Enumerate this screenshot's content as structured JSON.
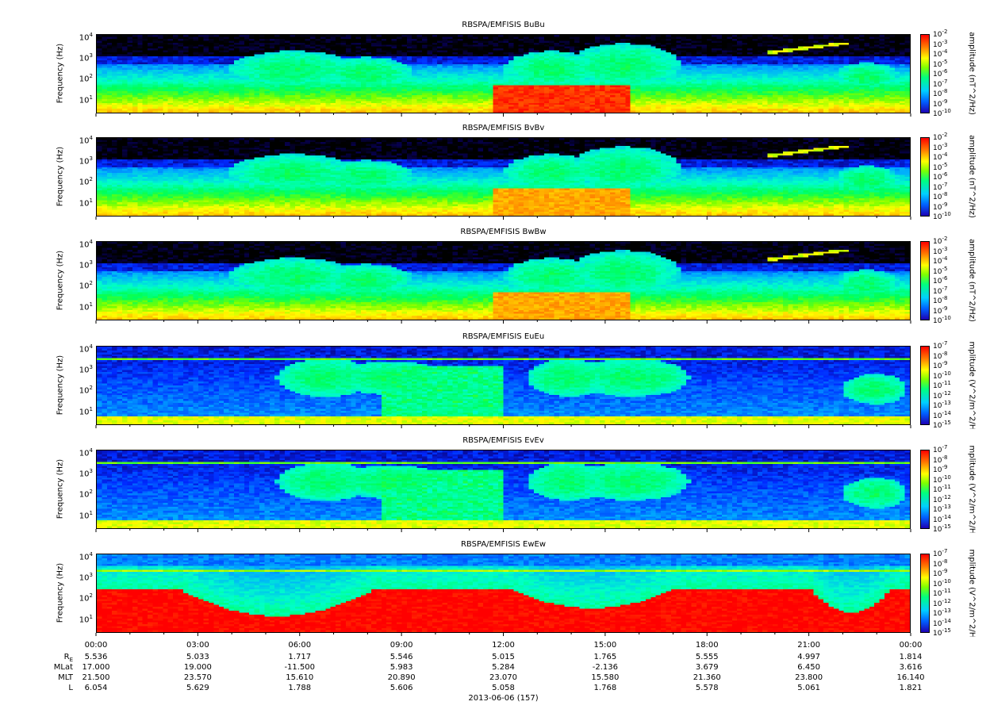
{
  "chart_data": {
    "type": "heatmap",
    "date_label": "2013-06-06 (157)",
    "x_ticks": [
      "00:00",
      "03:00",
      "06:00",
      "09:00",
      "12:00",
      "15:00",
      "18:00",
      "21:00",
      "00:00"
    ],
    "y_tick_labels": [
      "10",
      "10",
      "10",
      "10"
    ],
    "y_tick_exponents": [
      "1",
      "2",
      "3",
      "4"
    ],
    "ylabel": "Frequency (Hz)",
    "panels": [
      {
        "title": "RBSPA/EMFISIS  BuBu",
        "cblabel": "amplitude (nT^2/Hz)",
        "cbticks": [
          "-2",
          "-3",
          "-4",
          "-5",
          "-6",
          "-7",
          "-8",
          "-9",
          "-10"
        ],
        "kind": "B",
        "component": "u"
      },
      {
        "title": "RBSPA/EMFISIS  BvBv",
        "cblabel": "amplitude (nT^2/Hz)",
        "cbticks": [
          "-2",
          "-3",
          "-4",
          "-5",
          "-6",
          "-7",
          "-8",
          "-9",
          "-10"
        ],
        "kind": "B",
        "component": "v"
      },
      {
        "title": "RBSPA/EMFISIS  BwBw",
        "cblabel": "amplitude (nT^2/Hz)",
        "cbticks": [
          "-2",
          "-3",
          "-4",
          "-5",
          "-6",
          "-7",
          "-8",
          "-9",
          "-10"
        ],
        "kind": "B",
        "component": "w"
      },
      {
        "title": "RBSPA/EMFISIS  EuEu",
        "cblabel": "mplitude (V^2/m^2/Hz",
        "cbticks": [
          "-7",
          "-8",
          "-9",
          "-10",
          "-11",
          "-12",
          "-13",
          "-14",
          "-15"
        ],
        "kind": "E",
        "component": "u"
      },
      {
        "title": "RBSPA/EMFISIS  EvEv",
        "cblabel": "mplitude (V^2/m^2/Hz",
        "cbticks": [
          "-7",
          "-8",
          "-9",
          "-10",
          "-11",
          "-12",
          "-13",
          "-14",
          "-15"
        ],
        "kind": "E",
        "component": "v"
      },
      {
        "title": "RBSPA/EMFISIS  EwEw",
        "cblabel": "mplitude (V^2/m^2/Hz",
        "cbticks": [
          "-7",
          "-8",
          "-9",
          "-10",
          "-11",
          "-12",
          "-13",
          "-14",
          "-15"
        ],
        "kind": "Ew",
        "component": "w"
      }
    ],
    "colorbar_base": "10",
    "ephemeris": {
      "labels": [
        "R",
        "MLat",
        "MLT",
        "L"
      ],
      "re_subscript": "E",
      "rows": [
        [
          "5.536",
          "5.033",
          "1.717",
          "5.546",
          "5.015",
          "1.765",
          "5.555",
          "4.997",
          "1.814"
        ],
        [
          "17.000",
          "19.000",
          "-11.500",
          "5.983",
          "5.284",
          "-2.136",
          "3.679",
          "6.450",
          "3.616"
        ],
        [
          "21.500",
          "23.570",
          "15.610",
          "20.890",
          "23.070",
          "15.580",
          "21.360",
          "23.800",
          "16.140"
        ],
        [
          "6.054",
          "5.629",
          "1.788",
          "5.606",
          "5.058",
          "1.768",
          "5.578",
          "5.061",
          "1.821"
        ]
      ]
    }
  }
}
